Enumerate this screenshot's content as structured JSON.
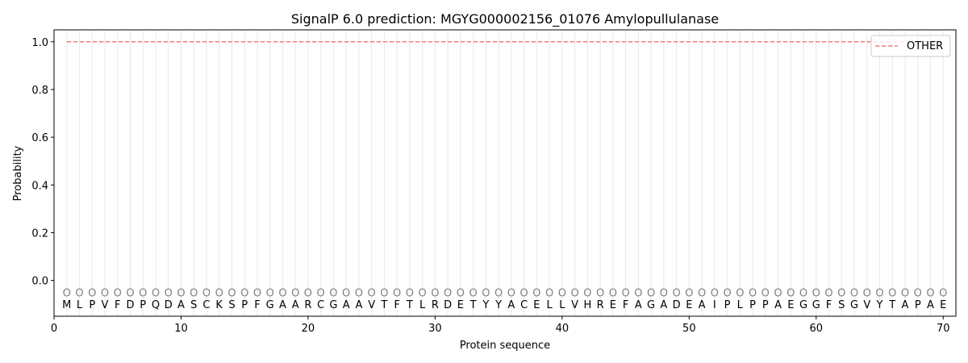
{
  "chart_data": {
    "type": "line",
    "title": "SignalP 6.0 prediction: MGYG000002156_01076 Amylopullulanase",
    "xlabel": "Protein sequence",
    "ylabel": "Probability",
    "xlim": [
      0,
      71
    ],
    "ylim": [
      -0.15,
      1.05
    ],
    "xticks": [
      0,
      10,
      20,
      30,
      40,
      50,
      60,
      70
    ],
    "yticks": [
      0.0,
      0.2,
      0.4,
      0.6,
      0.8,
      1.0
    ],
    "ytick_labels": [
      "0.0",
      "0.2",
      "0.4",
      "0.6",
      "0.8",
      "1.0"
    ],
    "sequence": "MLPVFDPQDASCKSPFGAARCGAAVTFTLRDETYYACELLVHREFAGADEAIPLPPAEGGFSGVYTAPAE",
    "region_label": "O",
    "series": [
      {
        "name": "OTHER",
        "color": "#f08080",
        "style": "dashed",
        "x_start": 1,
        "x_end": 70,
        "value": 1.0
      }
    ],
    "legend": {
      "placement": "top-right",
      "entries": [
        "OTHER"
      ]
    },
    "grid": "vertical lines at each residue"
  }
}
